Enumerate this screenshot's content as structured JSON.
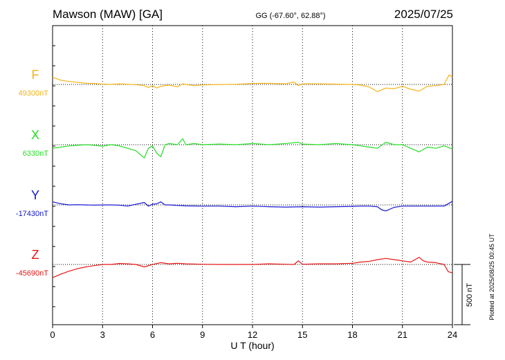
{
  "header": {
    "station": "Mawson (MAW)  [GA]",
    "coords": "GG (-67.60°,  62.88°)",
    "date": "2025/07/25"
  },
  "side_note": "Plotted at 2025/08/25 00:45 UT",
  "scale_label": "500 nT",
  "chart_data": {
    "type": "line",
    "xlabel": "U T (hour)",
    "xlim": [
      0,
      24
    ],
    "xticks": [
      "0",
      "3",
      "6",
      "9",
      "12",
      "15",
      "18",
      "21",
      "24"
    ],
    "grid": "dotted vertical lines every 3 hours",
    "scale_bar_nT": 500,
    "series": [
      {
        "name": "F",
        "baseline_label": "49300nT",
        "baseline": 49300,
        "color": "#f5b316",
        "points": [
          [
            0,
            49360
          ],
          [
            0.5,
            49335
          ],
          [
            1,
            49325
          ],
          [
            1.5,
            49318
          ],
          [
            2,
            49310
          ],
          [
            2.5,
            49308
          ],
          [
            3,
            49303
          ],
          [
            3.5,
            49300
          ],
          [
            4,
            49305
          ],
          [
            4.5,
            49302
          ],
          [
            5,
            49298
          ],
          [
            5.5,
            49290
          ],
          [
            5.75,
            49275
          ],
          [
            6,
            49290
          ],
          [
            6.25,
            49270
          ],
          [
            6.5,
            49285
          ],
          [
            7,
            49295
          ],
          [
            7.5,
            49280
          ],
          [
            7.8,
            49305
          ],
          [
            8,
            49300
          ],
          [
            8.5,
            49290
          ],
          [
            9,
            49296
          ],
          [
            10,
            49300
          ],
          [
            11,
            49302
          ],
          [
            12,
            49308
          ],
          [
            13,
            49310
          ],
          [
            14,
            49305
          ],
          [
            14.5,
            49320
          ],
          [
            14.75,
            49290
          ],
          [
            15,
            49305
          ],
          [
            16,
            49305
          ],
          [
            17,
            49303
          ],
          [
            18,
            49300
          ],
          [
            18.5,
            49295
          ],
          [
            19,
            49280
          ],
          [
            19.5,
            49240
          ],
          [
            20,
            49270
          ],
          [
            20.5,
            49265
          ],
          [
            21,
            49285
          ],
          [
            21.5,
            49260
          ],
          [
            22,
            49245
          ],
          [
            22.5,
            49285
          ],
          [
            23,
            49290
          ],
          [
            23.5,
            49300
          ],
          [
            23.8,
            49380
          ],
          [
            24,
            49360
          ]
        ]
      },
      {
        "name": "X",
        "baseline_label": "6330nT",
        "baseline": 6330,
        "color": "#22dd22",
        "points": [
          [
            0,
            6300
          ],
          [
            0.5,
            6310
          ],
          [
            1,
            6320
          ],
          [
            1.5,
            6325
          ],
          [
            2,
            6330
          ],
          [
            2.5,
            6325
          ],
          [
            3,
            6318
          ],
          [
            3.5,
            6330
          ],
          [
            4,
            6320
          ],
          [
            4.5,
            6300
          ],
          [
            5,
            6280
          ],
          [
            5.25,
            6250
          ],
          [
            5.5,
            6220
          ],
          [
            5.75,
            6300
          ],
          [
            6,
            6320
          ],
          [
            6.25,
            6260
          ],
          [
            6.5,
            6230
          ],
          [
            6.75,
            6330
          ],
          [
            7,
            6340
          ],
          [
            7.5,
            6330
          ],
          [
            7.8,
            6380
          ],
          [
            8,
            6330
          ],
          [
            8.5,
            6340
          ],
          [
            9,
            6330
          ],
          [
            10,
            6335
          ],
          [
            11,
            6330
          ],
          [
            12,
            6340
          ],
          [
            13,
            6330
          ],
          [
            14,
            6340
          ],
          [
            14.75,
            6350
          ],
          [
            15,
            6335
          ],
          [
            16,
            6330
          ],
          [
            17,
            6340
          ],
          [
            18,
            6330
          ],
          [
            18.5,
            6320
          ],
          [
            19,
            6310
          ],
          [
            19.5,
            6300
          ],
          [
            20,
            6350
          ],
          [
            20.5,
            6330
          ],
          [
            21,
            6330
          ],
          [
            21.5,
            6300
          ],
          [
            22,
            6270
          ],
          [
            22.5,
            6310
          ],
          [
            23,
            6300
          ],
          [
            23.5,
            6320
          ],
          [
            24,
            6295
          ]
        ]
      },
      {
        "name": "Y",
        "baseline_label": "-17430nT",
        "baseline": -17430,
        "color": "#1414d2",
        "points": [
          [
            0,
            -17405
          ],
          [
            0.5,
            -17420
          ],
          [
            1,
            -17430
          ],
          [
            1.5,
            -17428
          ],
          [
            2,
            -17430
          ],
          [
            2.5,
            -17432
          ],
          [
            3,
            -17430
          ],
          [
            3.5,
            -17430
          ],
          [
            4,
            -17432
          ],
          [
            4.5,
            -17440
          ],
          [
            5,
            -17425
          ],
          [
            5.5,
            -17410
          ],
          [
            5.75,
            -17440
          ],
          [
            6,
            -17425
          ],
          [
            6.25,
            -17420
          ],
          [
            6.5,
            -17405
          ],
          [
            6.75,
            -17430
          ],
          [
            7,
            -17430
          ],
          [
            8,
            -17438
          ],
          [
            9,
            -17440
          ],
          [
            10,
            -17440
          ],
          [
            11,
            -17445
          ],
          [
            12,
            -17440
          ],
          [
            13,
            -17445
          ],
          [
            14,
            -17448
          ],
          [
            15,
            -17445
          ],
          [
            16,
            -17448
          ],
          [
            17,
            -17445
          ],
          [
            18,
            -17442
          ],
          [
            18.5,
            -17440
          ],
          [
            19,
            -17440
          ],
          [
            19.5,
            -17445
          ],
          [
            19.75,
            -17470
          ],
          [
            20,
            -17480
          ],
          [
            20.5,
            -17450
          ],
          [
            21,
            -17440
          ],
          [
            22,
            -17440
          ],
          [
            23,
            -17440
          ],
          [
            23.5,
            -17440
          ],
          [
            24,
            -17400
          ]
        ]
      },
      {
        "name": "Z",
        "baseline_label": "-45690nT",
        "baseline": -45690,
        "color": "#e81414",
        "points": [
          [
            0,
            -45800
          ],
          [
            0.5,
            -45770
          ],
          [
            1,
            -45745
          ],
          [
            1.5,
            -45725
          ],
          [
            2,
            -45710
          ],
          [
            2.5,
            -45700
          ],
          [
            3,
            -45690
          ],
          [
            3.5,
            -45690
          ],
          [
            4,
            -45682
          ],
          [
            4.5,
            -45685
          ],
          [
            5,
            -45690
          ],
          [
            5.5,
            -45710
          ],
          [
            6,
            -45690
          ],
          [
            6.5,
            -45675
          ],
          [
            7,
            -45685
          ],
          [
            7.5,
            -45680
          ],
          [
            8,
            -45685
          ],
          [
            9,
            -45688
          ],
          [
            10,
            -45690
          ],
          [
            11,
            -45690
          ],
          [
            12,
            -45690
          ],
          [
            13,
            -45685
          ],
          [
            14,
            -45688
          ],
          [
            14.5,
            -45690
          ],
          [
            14.75,
            -45660
          ],
          [
            15,
            -45688
          ],
          [
            16,
            -45685
          ],
          [
            17,
            -45685
          ],
          [
            18,
            -45680
          ],
          [
            18.5,
            -45670
          ],
          [
            19,
            -45665
          ],
          [
            19.5,
            -45650
          ],
          [
            20,
            -45640
          ],
          [
            20.5,
            -45650
          ],
          [
            21,
            -45660
          ],
          [
            21.5,
            -45670
          ],
          [
            22,
            -45630
          ],
          [
            22.25,
            -45660
          ],
          [
            22.5,
            -45670
          ],
          [
            23,
            -45675
          ],
          [
            23.5,
            -45690
          ],
          [
            23.75,
            -45750
          ],
          [
            24,
            -45760
          ]
        ]
      }
    ]
  }
}
